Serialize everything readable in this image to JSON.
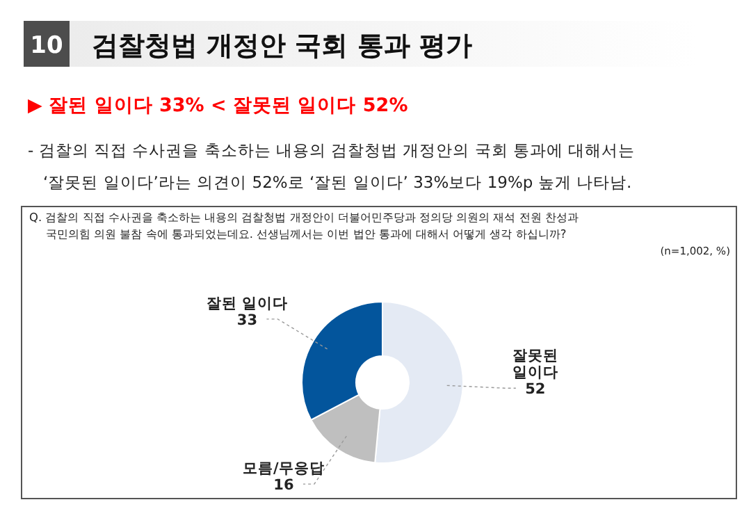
{
  "chart_data": {
    "type": "donut",
    "title": "검찰청법 개정안 국회 통과 평가",
    "subtitle": "▶ 잘된 일이다 33% < 잘못된 일이다 52%",
    "annotations": [
      "10",
      "- 검찰의 직접 수사권을 축소하는 내용의 검찰청법 개정안의 국회 통과에 대해서는",
      "‘잘못된 일이다’라는 의견이 52%로 ‘잘된 일이다’ 33%보다 19%p 높게 나타남.",
      "Q. 검찰의 직접 수사권을 축소하는 내용의 검찰청법 개정안이 더불어민주당과 정의당 의원의 재석 전원 찬성과",
      "국민의힘 의원 불참 속에 통과되었는데요. 선생님께서는 이번 법안 통과에 대해서 어떻게 생각 하십니까?",
      "(n=1,002, %)"
    ],
    "categories": [
      "잘못된 일이다",
      "모름/무응답",
      "잘된 일이다"
    ],
    "values": [
      52,
      16,
      33
    ],
    "colors": [
      "#e4eaf4",
      "#bfbfbf",
      "#03559c"
    ],
    "data_labels": true
  }
}
